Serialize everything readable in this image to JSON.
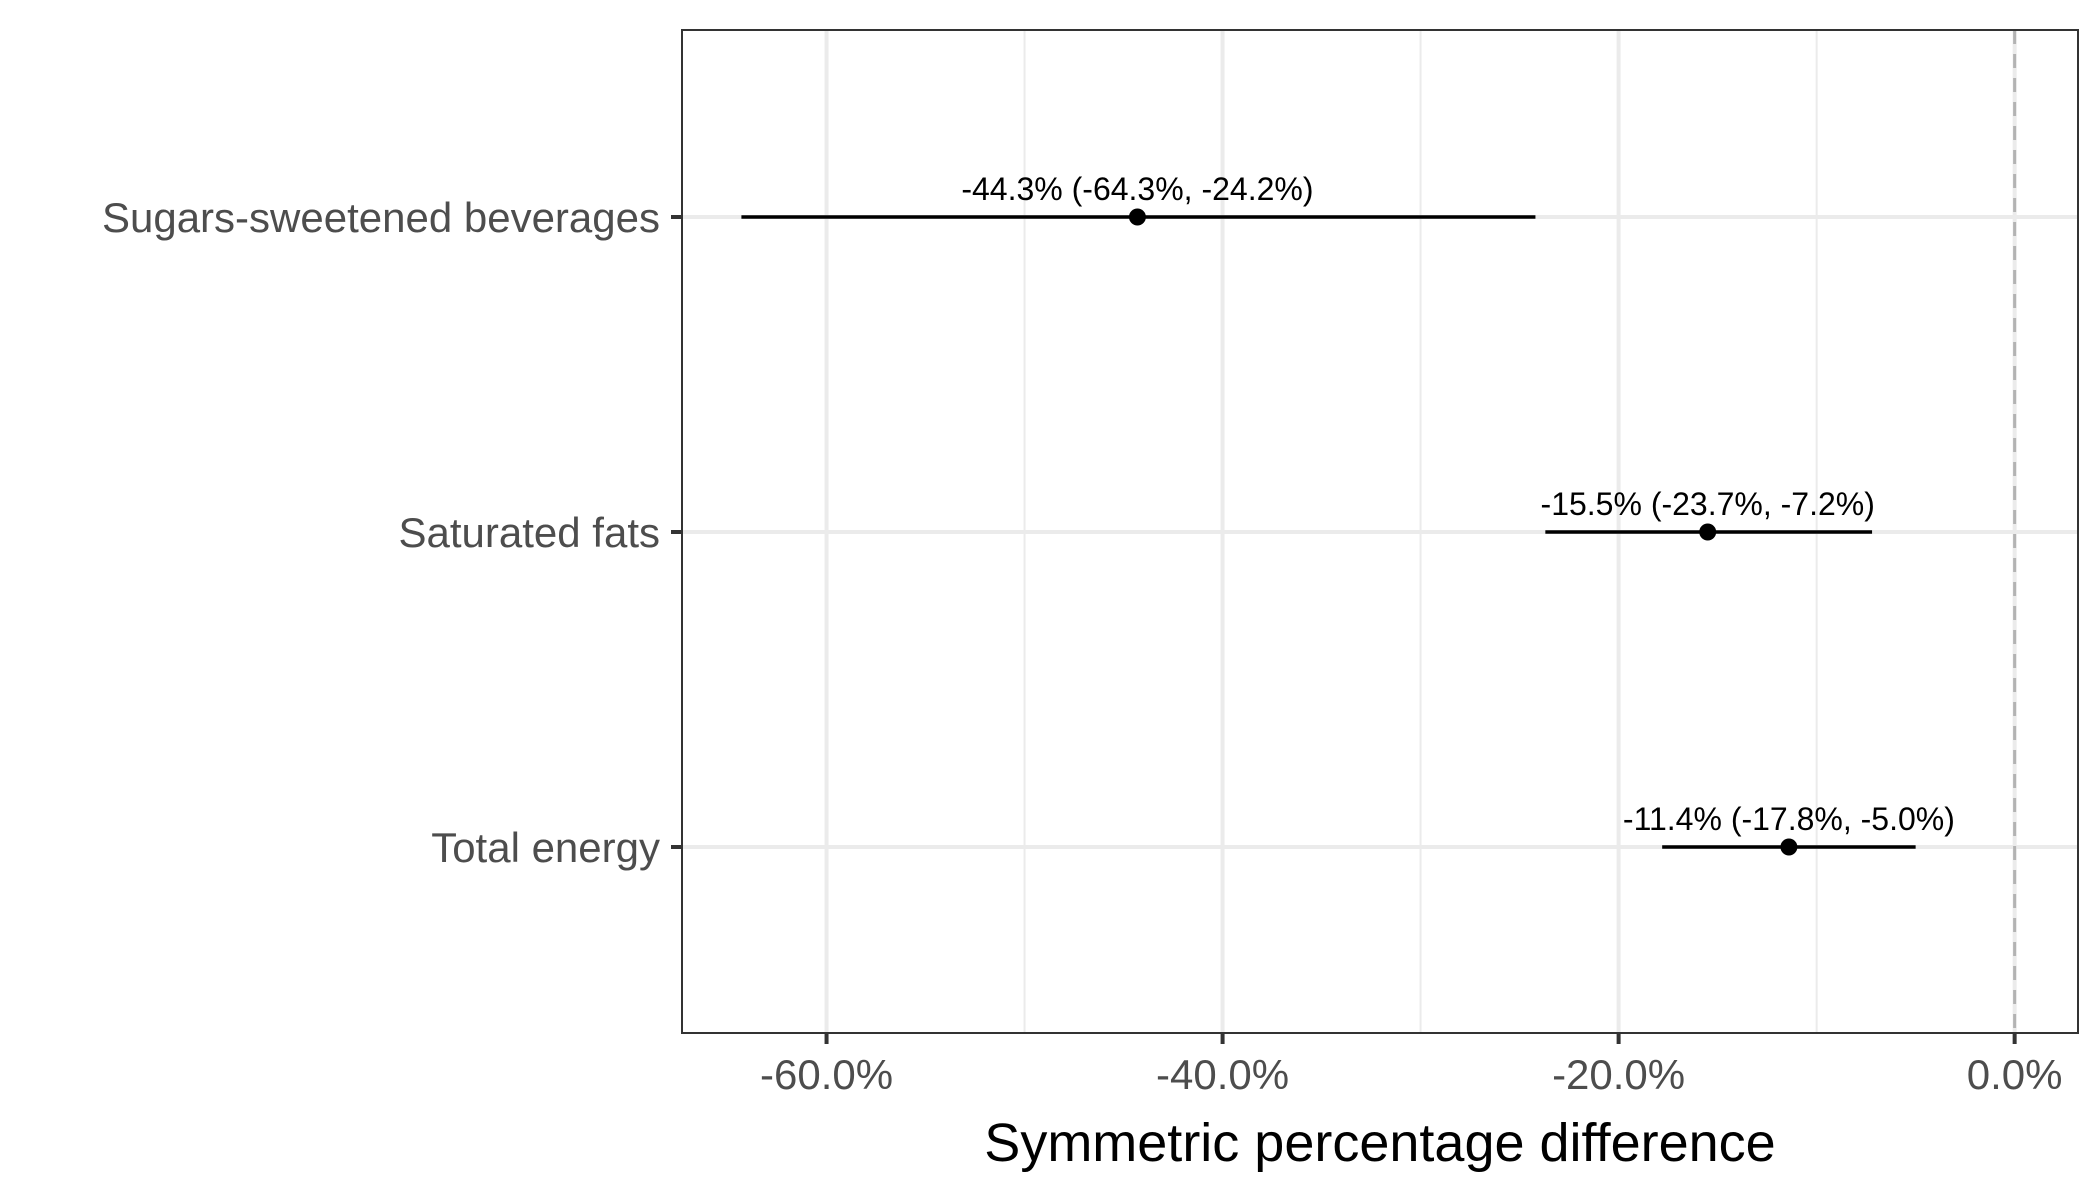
{
  "chart_data": {
    "type": "forest",
    "categories": [
      "Sugars-sweetened beverages",
      "Saturated fats",
      "Total energy"
    ],
    "series": [
      {
        "estimates": [
          -44.3,
          -15.5,
          -11.4
        ],
        "lower": [
          -64.3,
          -23.7,
          -17.8
        ],
        "upper": [
          -24.2,
          -7.2,
          -5.0
        ],
        "labels": [
          "-44.3% (-64.3%, -24.2%)",
          "-15.5% (-23.7%, -7.2%)",
          "-11.4% (-17.8%, -5.0%)"
        ]
      }
    ],
    "xlabel": "Symmetric percentage difference",
    "ylabel": "",
    "xlim": [
      -67.3,
      3.2
    ],
    "xticks": [
      -60,
      -40,
      -20,
      0
    ],
    "xtick_labels": [
      "-60.0%",
      "-40.0%",
      "-20.0%",
      "0.0%"
    ],
    "x_minor_gridlines": [
      -50,
      -30,
      -10
    ],
    "reference_line": 0,
    "grid": true,
    "legend": "none",
    "colors": {
      "point": "#000000",
      "grid": "#ebebeb",
      "reference_line": "#b3b3b3",
      "tick_label": "#4d4d4d",
      "panel_border": "#333333"
    }
  }
}
